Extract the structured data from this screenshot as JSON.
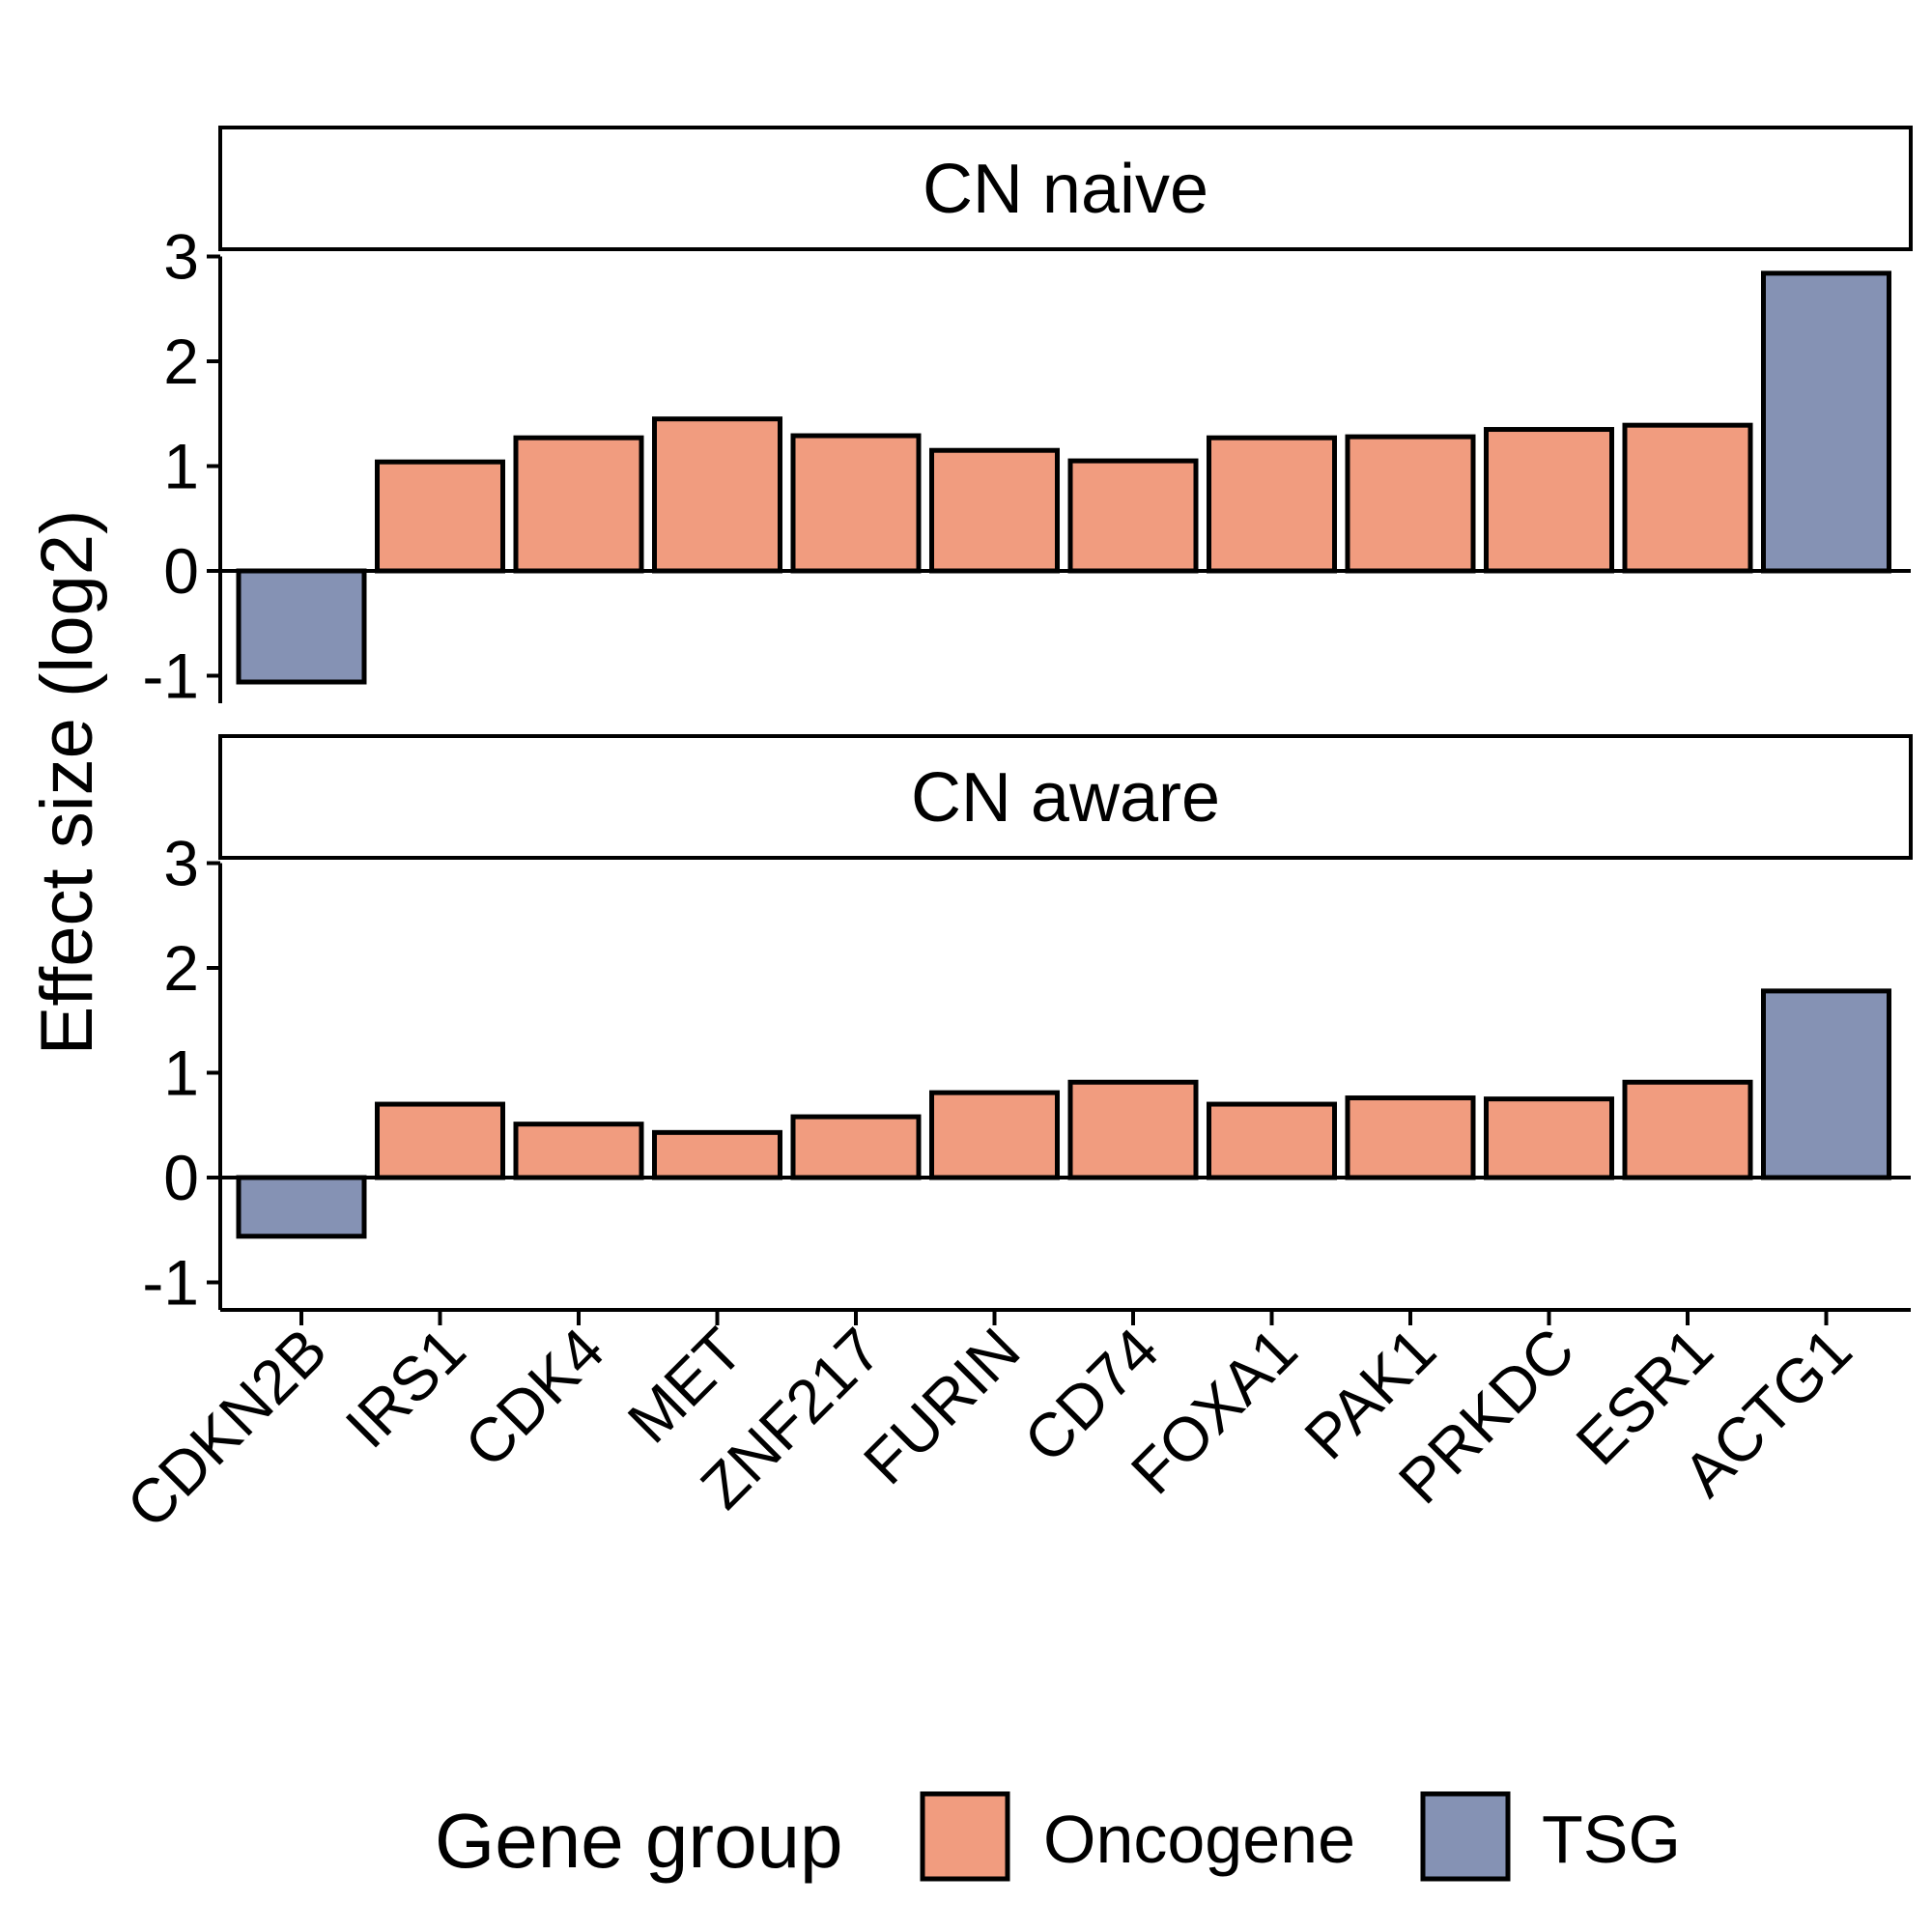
{
  "chart_data": {
    "type": "bar",
    "ylabel": "Effect size (log2)",
    "xlabel": "",
    "ylim": [
      -1.25,
      3
    ],
    "yticks": [
      -1,
      0,
      1,
      2,
      3
    ],
    "categories": [
      "CDKN2B",
      "IRS1",
      "CDK4",
      "MET",
      "ZNF217",
      "FURIN",
      "CD74",
      "FOXA1",
      "PAK1",
      "PRKDC",
      "ESR1",
      "ACTG1"
    ],
    "groups": [
      "TSG",
      "Oncogene",
      "Oncogene",
      "Oncogene",
      "Oncogene",
      "Oncogene",
      "Oncogene",
      "Oncogene",
      "Oncogene",
      "Oncogene",
      "Oncogene",
      "TSG"
    ],
    "panels": [
      {
        "name": "CN naive",
        "values": [
          -1.06,
          1.04,
          1.27,
          1.45,
          1.29,
          1.15,
          1.05,
          1.27,
          1.28,
          1.35,
          1.39,
          2.84
        ]
      },
      {
        "name": "CN aware",
        "values": [
          -0.56,
          0.7,
          0.51,
          0.43,
          0.58,
          0.81,
          0.91,
          0.7,
          0.76,
          0.75,
          0.91,
          1.78
        ]
      }
    ],
    "legend": {
      "title": "Gene group",
      "position": "bottom",
      "entries": [
        {
          "label": "Oncogene",
          "color": "#f19c7f"
        },
        {
          "label": "TSG",
          "color": "#8592b4"
        }
      ]
    },
    "colors": {
      "Oncogene": "#f19c7f",
      "TSG": "#8592b4"
    }
  }
}
